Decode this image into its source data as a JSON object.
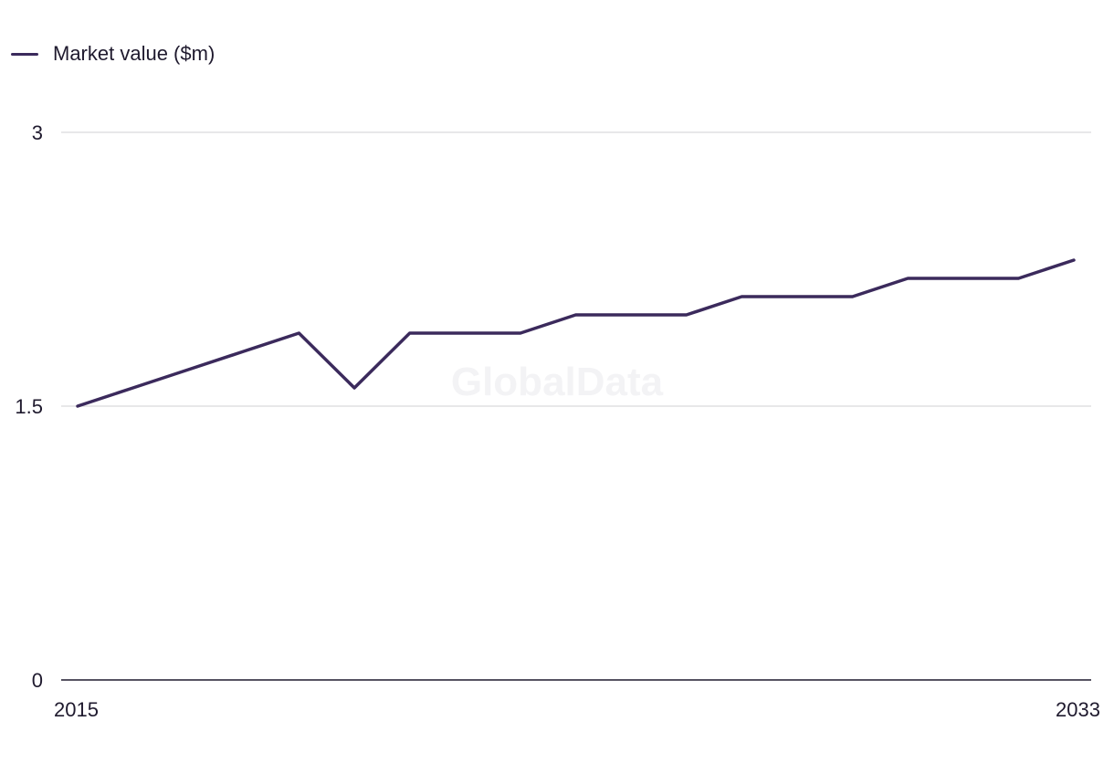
{
  "chart_data": {
    "type": "line",
    "watermark": "GlobalData",
    "series": [
      {
        "name": "Market value ($m)",
        "color": "#3b2a5c",
        "x": [
          2015,
          2016,
          2017,
          2018,
          2019,
          2020,
          2021,
          2022,
          2023,
          2024,
          2025,
          2026,
          2027,
          2028,
          2029,
          2030,
          2031,
          2032,
          2033
        ],
        "values": [
          1.5,
          1.6,
          1.7,
          1.8,
          1.9,
          1.6,
          1.9,
          1.9,
          1.9,
          2.0,
          2.0,
          2.0,
          2.1,
          2.1,
          2.1,
          2.2,
          2.2,
          2.2,
          2.3
        ]
      }
    ],
    "xlim": [
      2015,
      2033
    ],
    "ylim": [
      0,
      3
    ],
    "y_ticks": [
      {
        "value": 0,
        "label": "0"
      },
      {
        "value": 1.5,
        "label": "1.5"
      },
      {
        "value": 3,
        "label": "3"
      }
    ],
    "x_tick_labels": [
      {
        "value": 2015,
        "label": "2015"
      },
      {
        "value": 2033,
        "label": "2033"
      }
    ],
    "legend_position": "top-left",
    "grid": true,
    "colors": {
      "gridline": "#d9d9dc",
      "axis": "#1f1a2e",
      "text": "#1f1a2e"
    }
  }
}
